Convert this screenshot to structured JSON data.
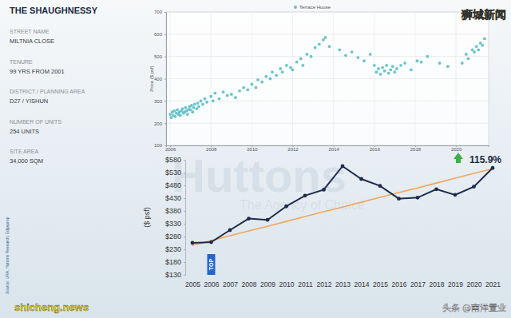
{
  "panel": {
    "title": "THE SHAUGHNESSY",
    "fields": [
      {
        "label": "STREET NAME",
        "value": "MILTNIA CLOSE"
      },
      {
        "label": "TENURE",
        "value": "99 YRS FROM 2001"
      },
      {
        "label": "DISTRICT / PLANNING AREA",
        "value": "D27 / YISHUN"
      },
      {
        "label": "NUMBER OF UNITS",
        "value": "254 UNITS"
      },
      {
        "label": "SITE AREA",
        "value": "34,000 SQM"
      }
    ]
  },
  "watermarks": {
    "top_right": "狮城新闻",
    "bottom_left": "shicheng.news",
    "bottom_right": "头条 @南洋置业",
    "background": "Huttons",
    "background_sub": "The Agency of Choice"
  },
  "source": "Source: URA, Huttons Research, Edgeprop",
  "chart_data": [
    {
      "type": "scatter",
      "y_label": "Price ($ psf)",
      "legend": "top",
      "grid": true,
      "x": [
        2006.0,
        2006.05,
        2006.1,
        2006.15,
        2006.2,
        2006.25,
        2006.3,
        2006.35,
        2006.4,
        2006.45,
        2006.5,
        2006.55,
        2006.6,
        2006.65,
        2006.7,
        2006.75,
        2006.8,
        2006.85,
        2006.9,
        2006.95,
        2007.0,
        2007.05,
        2007.1,
        2007.15,
        2007.2,
        2007.3,
        2007.35,
        2007.4,
        2007.5,
        2007.6,
        2007.7,
        2007.8,
        2008.0,
        2008.1,
        2008.2,
        2008.4,
        2008.6,
        2008.8,
        2009.0,
        2009.2,
        2009.4,
        2009.6,
        2009.8,
        2010.0,
        2010.2,
        2010.3,
        2010.5,
        2010.7,
        2010.9,
        2011.0,
        2011.2,
        2011.4,
        2011.5,
        2011.7,
        2011.9,
        2012.0,
        2012.2,
        2012.4,
        2012.5,
        2012.7,
        2012.9,
        2013.1,
        2013.3,
        2013.5,
        2013.6,
        2013.8,
        2014.3,
        2014.6,
        2014.9,
        2015.2,
        2015.5,
        2015.8,
        2016.0,
        2016.1,
        2016.2,
        2016.3,
        2016.4,
        2016.5,
        2016.6,
        2016.7,
        2016.8,
        2016.9,
        2017.0,
        2017.1,
        2017.3,
        2017.5,
        2017.8,
        2018.1,
        2018.3,
        2018.6,
        2019.2,
        2019.6,
        2020.3,
        2020.5,
        2020.6,
        2020.8,
        2020.9,
        2021.0,
        2021.1,
        2021.2,
        2021.3,
        2021.4
      ],
      "series": [
        {
          "name": "Terrace House",
          "color": "#5bbfc4",
          "marker": "circle",
          "values": [
            240,
            225,
            250,
            235,
            255,
            230,
            245,
            260,
            240,
            250,
            235,
            255,
            265,
            245,
            250,
            270,
            255,
            240,
            262,
            275,
            260,
            280,
            250,
            270,
            285,
            265,
            290,
            275,
            300,
            285,
            310,
            295,
            320,
            300,
            335,
            310,
            340,
            325,
            330,
            315,
            345,
            360,
            350,
            375,
            360,
            395,
            385,
            410,
            400,
            430,
            415,
            445,
            430,
            460,
            450,
            440,
            475,
            490,
            460,
            510,
            500,
            540,
            555,
            575,
            585,
            545,
            530,
            505,
            520,
            495,
            480,
            510,
            460,
            430,
            445,
            420,
            450,
            435,
            460,
            425,
            440,
            455,
            430,
            445,
            460,
            470,
            440,
            480,
            475,
            500,
            470,
            455,
            470,
            510,
            490,
            530,
            520,
            545,
            530,
            560,
            550,
            580
          ]
        }
      ],
      "xlim": [
        2005.8,
        2021.6
      ],
      "xticks": [
        2006,
        2008,
        2010,
        2012,
        2014,
        2016,
        2018,
        2020
      ],
      "ylim": [
        100,
        700
      ],
      "yticks": [
        100,
        200,
        300,
        400,
        500,
        600,
        700
      ]
    },
    {
      "type": "line",
      "y_label": "($ psf)",
      "categories": [
        "2005",
        "2006",
        "2007",
        "2008",
        "2009",
        "2010",
        "2011",
        "2012",
        "2013",
        "2014",
        "2015",
        "2016",
        "2017",
        "2018",
        "2019",
        "2020",
        "2021"
      ],
      "series": [
        {
          "color": "#1f2b4d",
          "marker": "circle",
          "line_style": "solid",
          "values": [
            255,
            258,
            305,
            350,
            345,
            398,
            440,
            463,
            555,
            505,
            478,
            428,
            432,
            465,
            443,
            475,
            548
          ]
        },
        {
          "color": "#f2a65a",
          "line_style": "solid",
          "values": [
            245,
            264,
            283,
            302,
            320,
            339,
            358,
            377,
            395,
            414,
            433,
            452,
            470,
            489,
            508,
            527,
            545
          ]
        }
      ],
      "ylim": [
        130,
        580
      ],
      "yticks": [
        {
          "value": 130,
          "label": "$130"
        },
        {
          "value": 180,
          "label": "$180"
        },
        {
          "value": 230,
          "label": "$230"
        },
        {
          "value": 280,
          "label": "$280"
        },
        {
          "value": 330,
          "label": "$330"
        },
        {
          "value": 380,
          "label": "$380"
        },
        {
          "value": 430,
          "label": "$430"
        },
        {
          "value": 480,
          "label": "$480"
        },
        {
          "value": 530,
          "label": "$530"
        },
        {
          "value": 580,
          "label": "$580"
        }
      ],
      "annotations": [
        "115.9%",
        "TOP"
      ]
    }
  ]
}
